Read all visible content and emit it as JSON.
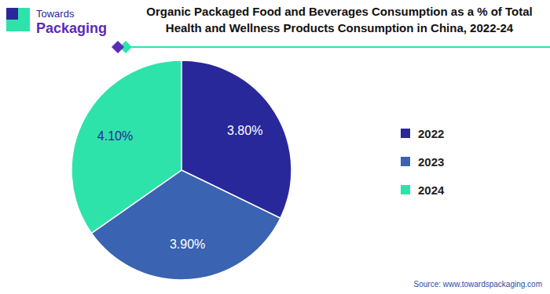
{
  "chart_data": {
    "type": "pie",
    "title": "Organic Packaged Food and Beverages Consumption as a % of Total\nHealth and Wellness Products Consumption in China, 2022-24",
    "logo": [
      "Towards",
      "Packaging"
    ],
    "source": "Source: www.towardspackaging.com",
    "categories": [
      "2022",
      "2023",
      "2024"
    ],
    "values": [
      3.8,
      3.9,
      4.1
    ],
    "value_labels": [
      "3.80%",
      "3.90%",
      "4.10%"
    ],
    "colors": [
      "#29289a",
      "#3a63b1",
      "#2ee3aa"
    ],
    "data_labels": true,
    "legend": "right"
  }
}
